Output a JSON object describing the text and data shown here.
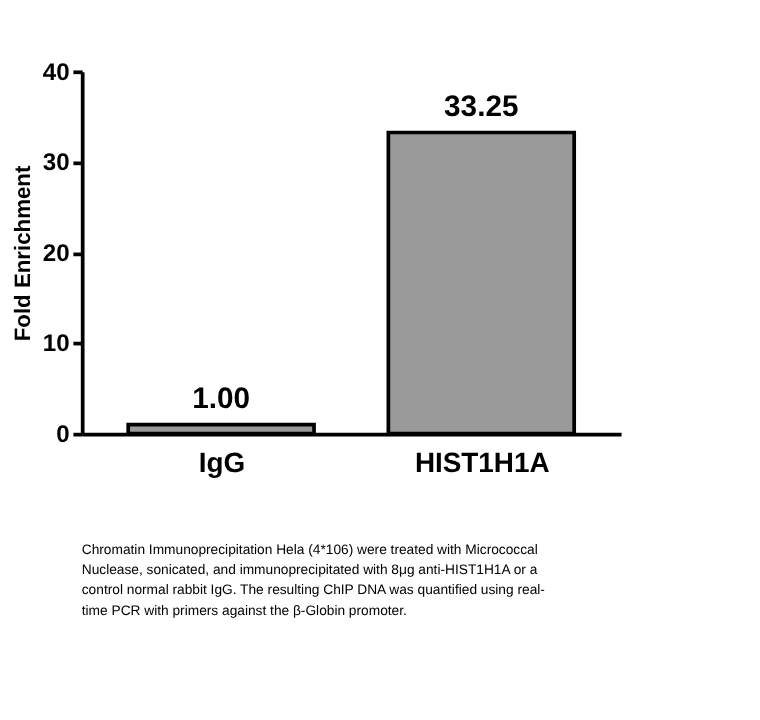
{
  "chart_data": {
    "type": "bar",
    "categories": [
      "IgG",
      "HIST1H1A"
    ],
    "values": [
      1.0,
      33.25
    ],
    "value_labels": [
      "1.00",
      "33.25"
    ],
    "color": "#9a9a9a",
    "ylabel": "Fold Enrichment",
    "ylim": [
      0,
      40
    ],
    "yticks": [
      0,
      10,
      20,
      30,
      40
    ],
    "grid": false,
    "annotations": [
      "Chromatin Immunoprecipitation Hela (4*106) were treated with Micrococcal Nuclease, sonicated, and immunoprecipitated with 8μg anti-HIST1H1A or a control normal rabbit IgG. The resulting ChIP DNA was quantified using real-time PCR with primers against the β-Globin promoter."
    ]
  }
}
